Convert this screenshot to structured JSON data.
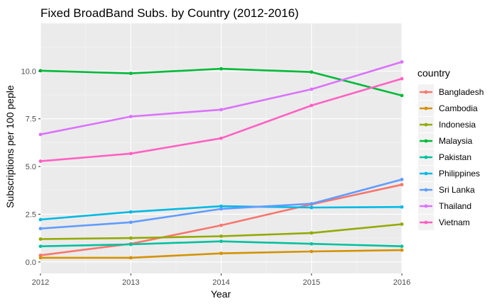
{
  "chart_data": {
    "type": "line",
    "title": "Fixed BroadBand Subs. by Country (2012-2016)",
    "xlabel": "Year",
    "ylabel": "Subscriptions per 100 peple",
    "x": [
      2012,
      2013,
      2014,
      2015,
      2016
    ],
    "x_ticks": [
      "2012",
      "2013",
      "2014",
      "2015",
      "2016"
    ],
    "y_ticks": [
      "0.0",
      "2.5",
      "5.0",
      "7.5",
      "10.0"
    ],
    "xlim": [
      2012,
      2016
    ],
    "ylim": [
      -0.6,
      12.5
    ],
    "grid": true,
    "legend": {
      "title": "country",
      "placement": "right"
    },
    "series": [
      {
        "name": "Bangladesh",
        "color": "#F8766D",
        "values": [
          0.35,
          0.95,
          1.92,
          3.02,
          4.05
        ]
      },
      {
        "name": "Cambodia",
        "color": "#D39200",
        "values": [
          0.22,
          0.22,
          0.45,
          0.55,
          0.62
        ]
      },
      {
        "name": "Indonesia",
        "color": "#93AA00",
        "values": [
          1.2,
          1.25,
          1.35,
          1.52,
          1.98
        ]
      },
      {
        "name": "Malaysia",
        "color": "#00BA38",
        "values": [
          10.02,
          9.88,
          10.12,
          9.95,
          8.72
        ]
      },
      {
        "name": "Pakistan",
        "color": "#00C19F",
        "values": [
          0.82,
          0.92,
          1.08,
          0.95,
          0.82
        ]
      },
      {
        "name": "Philippines",
        "color": "#00B9E3",
        "values": [
          2.22,
          2.62,
          2.92,
          2.85,
          2.88
        ]
      },
      {
        "name": "Sri Lanka",
        "color": "#619CFF",
        "values": [
          1.75,
          2.08,
          2.78,
          3.05,
          4.32
        ]
      },
      {
        "name": "Thailand",
        "color": "#DB72FB",
        "values": [
          6.68,
          7.62,
          7.98,
          9.05,
          10.48
        ]
      },
      {
        "name": "Vietnam",
        "color": "#FF61C3",
        "values": [
          5.28,
          5.68,
          6.48,
          8.2,
          9.6
        ]
      }
    ]
  }
}
